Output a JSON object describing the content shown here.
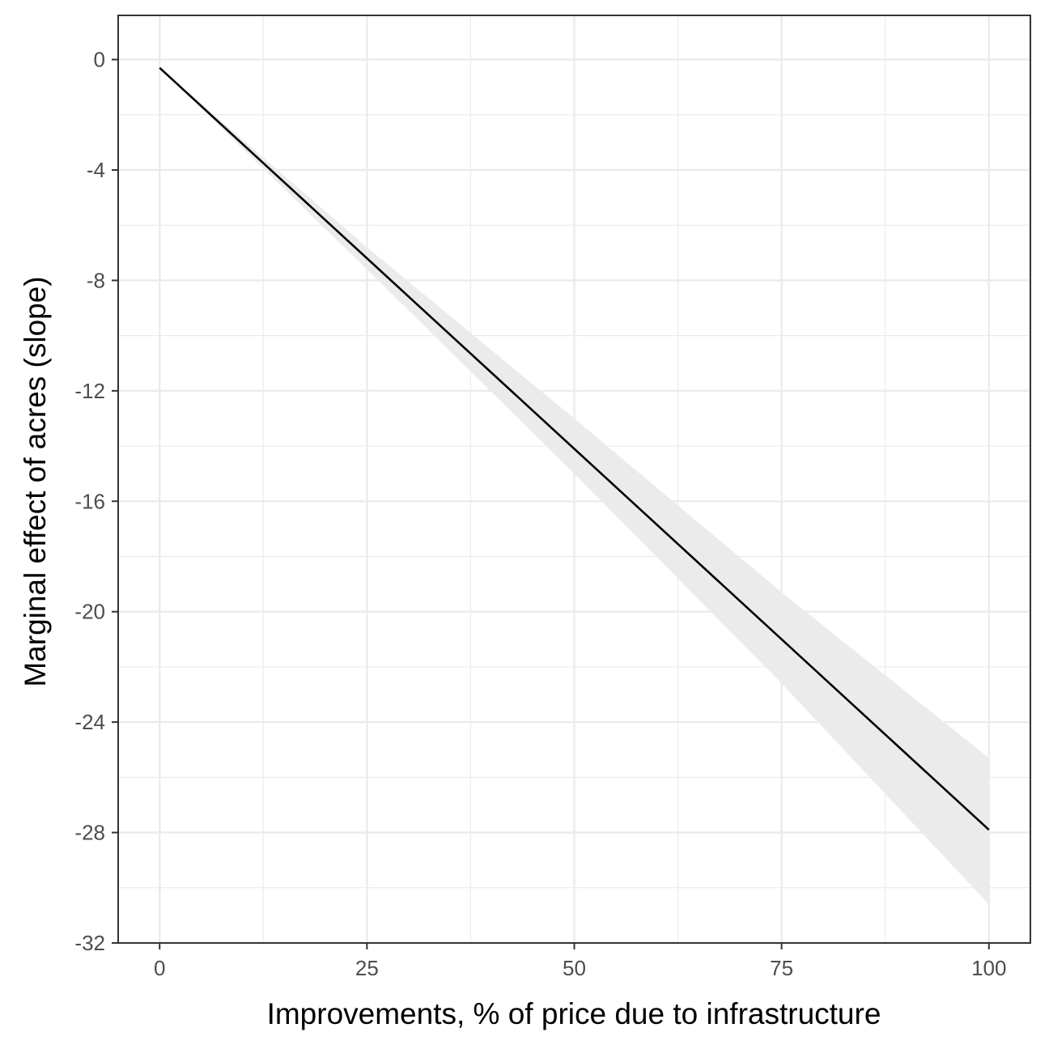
{
  "chart_data": {
    "type": "line",
    "title": "",
    "xlabel": "Improvements, % of price due to infrastructure",
    "ylabel": "Marginal effect of acres (slope)",
    "xlim": [
      -5,
      105
    ],
    "ylim": [
      -32,
      1.6
    ],
    "x_ticks": [
      0,
      25,
      50,
      75,
      100
    ],
    "x_tick_labels": [
      "0",
      "25",
      "50",
      "75",
      "100"
    ],
    "y_ticks": [
      0,
      -4,
      -8,
      -12,
      -16,
      -20,
      -24,
      -28,
      -32
    ],
    "y_tick_labels": [
      "0",
      "-4",
      "-8",
      "-12",
      "-16",
      "-20",
      "-24",
      "-28",
      "-32"
    ],
    "grid": true,
    "legend": "none",
    "series": [
      {
        "x": [
          0,
          25,
          50,
          75,
          100
        ],
        "y": [
          -0.3,
          -7.2,
          -14.1,
          -21.0,
          -27.9
        ],
        "lower": [
          -0.3,
          -7.6,
          -15.0,
          -22.6,
          -30.6
        ],
        "upper": [
          -0.3,
          -6.8,
          -13.0,
          -19.3,
          -25.3
        ],
        "line_color": "#000000",
        "ribbon_color": "#ebebeb"
      }
    ]
  }
}
